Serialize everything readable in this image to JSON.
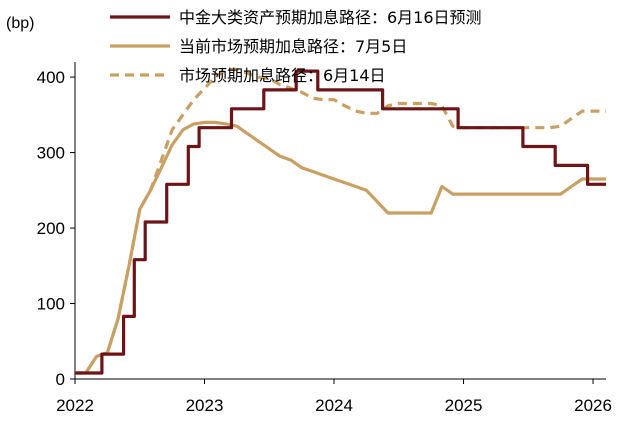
{
  "chart_data": {
    "type": "line",
    "ylabel": "(bp)",
    "ylim": [
      0,
      420
    ],
    "xlim": [
      2022,
      2026.1
    ],
    "xticks": [
      "2022",
      "2023",
      "2024",
      "2025",
      "2026"
    ],
    "yticks": [
      "0",
      "100",
      "200",
      "300",
      "400"
    ],
    "legend_placement": "top",
    "series": [
      {
        "name": "中金大类资产预期加息路径：6月16日预测",
        "color": "#6b1518",
        "dash": "solid",
        "step": true,
        "x": [
          2022.0,
          2022.125,
          2022.208,
          2022.292,
          2022.375,
          2022.458,
          2022.542,
          2022.625,
          2022.708,
          2022.792,
          2022.875,
          2022.958,
          2023.042,
          2023.125,
          2023.208,
          2023.292,
          2023.375,
          2023.458,
          2023.542,
          2023.625,
          2023.708,
          2023.792,
          2023.875,
          2023.958,
          2024.042,
          2024.125,
          2024.208,
          2024.292,
          2024.375,
          2024.458,
          2024.542,
          2024.625,
          2024.708,
          2024.792,
          2024.875,
          2024.958,
          2025.042,
          2025.125,
          2025.208,
          2025.292,
          2025.375,
          2025.458,
          2025.542,
          2025.625,
          2025.708,
          2025.792,
          2025.875,
          2025.958,
          2026.042,
          2026.1
        ],
        "values": [
          8,
          8,
          33,
          33,
          83,
          158,
          208,
          208,
          258,
          258,
          308,
          333,
          333,
          333,
          358,
          358,
          358,
          383,
          383,
          383,
          408,
          408,
          383,
          383,
          383,
          383,
          383,
          383,
          358,
          358,
          358,
          358,
          358,
          358,
          358,
          333,
          333,
          333,
          333,
          333,
          333,
          308,
          308,
          308,
          283,
          283,
          283,
          258,
          258,
          258
        ]
      },
      {
        "name": "当前市场预期加息路径：7月5日",
        "color": "#c8a064",
        "dash": "solid",
        "step": false,
        "x": [
          2022.0,
          2022.083,
          2022.167,
          2022.25,
          2022.333,
          2022.417,
          2022.5,
          2022.583,
          2022.667,
          2022.75,
          2022.833,
          2022.917,
          2023.0,
          2023.083,
          2023.167,
          2023.25,
          2023.333,
          2023.417,
          2023.5,
          2023.583,
          2023.667,
          2023.75,
          2023.833,
          2023.917,
          2024.0,
          2024.083,
          2024.167,
          2024.25,
          2024.333,
          2024.417,
          2024.5,
          2024.583,
          2024.667,
          2024.75,
          2024.833,
          2024.917,
          2025.0,
          2025.083,
          2025.167,
          2025.25,
          2025.333,
          2025.417,
          2025.5,
          2025.583,
          2025.667,
          2025.75,
          2025.833,
          2025.917,
          2026.0,
          2026.1
        ],
        "values": [
          8,
          8,
          30,
          35,
          80,
          150,
          225,
          250,
          280,
          310,
          330,
          338,
          340,
          340,
          338,
          335,
          325,
          315,
          305,
          295,
          290,
          280,
          275,
          270,
          265,
          260,
          255,
          250,
          235,
          220,
          220,
          220,
          220,
          220,
          255,
          245,
          245,
          245,
          245,
          245,
          245,
          245,
          245,
          245,
          245,
          245,
          255,
          265,
          265,
          265
        ]
      },
      {
        "name": "市场预期加息路径：6月14日",
        "color": "#c8a064",
        "dash": "dashed",
        "step": false,
        "x": [
          2022.0,
          2022.083,
          2022.167,
          2022.25,
          2022.333,
          2022.417,
          2022.5,
          2022.583,
          2022.667,
          2022.75,
          2022.833,
          2022.917,
          2023.0,
          2023.083,
          2023.167,
          2023.25,
          2023.333,
          2023.417,
          2023.5,
          2023.583,
          2023.667,
          2023.75,
          2023.833,
          2023.917,
          2024.0,
          2024.083,
          2024.167,
          2024.25,
          2024.333,
          2024.417,
          2024.5,
          2024.583,
          2024.667,
          2024.75,
          2024.833,
          2024.917,
          2025.0,
          2025.083,
          2025.167,
          2025.25,
          2025.333,
          2025.417,
          2025.5,
          2025.583,
          2025.667,
          2025.75,
          2025.833,
          2025.917,
          2026.0,
          2026.1
        ],
        "values": [
          8,
          8,
          30,
          35,
          80,
          150,
          225,
          250,
          290,
          330,
          350,
          370,
          385,
          400,
          410,
          410,
          405,
          400,
          398,
          390,
          385,
          380,
          372,
          370,
          370,
          362,
          355,
          352,
          352,
          362,
          365,
          365,
          365,
          365,
          362,
          335,
          333,
          333,
          333,
          333,
          333,
          333,
          333,
          333,
          333,
          335,
          345,
          355,
          355,
          355
        ]
      }
    ]
  }
}
